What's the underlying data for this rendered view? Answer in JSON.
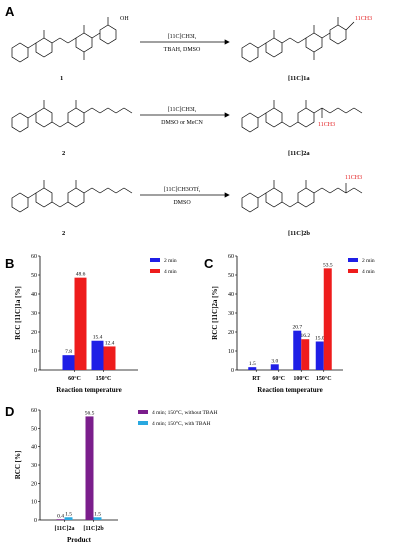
{
  "panels": {
    "a": "A",
    "b": "B",
    "c": "C",
    "d": "D"
  },
  "reactions": [
    {
      "reagent_line1": "[11C]CH3I,",
      "reagent_line2": "TBAH, DMSO",
      "reactant": "1",
      "product": "[11C]1a"
    },
    {
      "reagent_line1": "[11C]CH3I,",
      "reagent_line2": "DMSO or MeCN",
      "reactant": "2",
      "product": "[11C]2a"
    },
    {
      "reagent_line1": "[11C]CH3OTf,",
      "reagent_line2": "DMSO",
      "reactant": "2",
      "product": "[11C]2b"
    }
  ],
  "chem_labels": {
    "acid": "OH",
    "ester": "11CH3",
    "amine_me": "11CH3",
    "amide_me": "11CH3"
  },
  "colors": {
    "blue": "#1f1fe6",
    "red": "#ee1c1c",
    "purple": "#7b1e8c",
    "cyan": "#29a8e0"
  },
  "chart_data": [
    {
      "type": "bar",
      "panel": "B",
      "categories": [
        "60°C",
        "150°C"
      ],
      "series": [
        {
          "name": "2 min",
          "values": [
            7.8,
            15.4
          ]
        },
        {
          "name": "4 min",
          "values": [
            48.6,
            12.4
          ]
        }
      ],
      "value_labels": [
        [
          "7.8",
          "15.4"
        ],
        [
          "48.6",
          "12.4"
        ]
      ],
      "xlabel": "Reaction temperature",
      "ylabel": "RCC [11C]1a [%]",
      "ylim": [
        0,
        60
      ],
      "yticks": [
        "0",
        "10",
        "20",
        "30",
        "40",
        "50",
        "60"
      ],
      "legend": "top-right"
    },
    {
      "type": "bar",
      "panel": "C",
      "categories": [
        "RT",
        "60°C",
        "100°C",
        "150°C"
      ],
      "series": [
        {
          "name": "2 min",
          "values": [
            1.5,
            3.0,
            20.7,
            15.0
          ]
        },
        {
          "name": "4 min",
          "values": [
            0,
            0,
            16.2,
            53.5
          ]
        }
      ],
      "value_labels": [
        [
          "1.5",
          "3.0",
          "20.7",
          "15.0"
        ],
        [
          "",
          "",
          "16.2",
          "53.5"
        ]
      ],
      "xlabel": "Reaction temperature",
      "ylabel": "RCC [11C]2a [%]",
      "ylim": [
        0,
        60
      ],
      "yticks": [
        "0",
        "10",
        "20",
        "30",
        "40",
        "50",
        "60"
      ],
      "legend": "top-right"
    },
    {
      "type": "bar",
      "panel": "D",
      "categories": [
        "[11C]2a",
        "[11C]2b"
      ],
      "series": [
        {
          "name": "4 min; 150°C, without TBAH",
          "values": [
            0.4,
            56.5
          ]
        },
        {
          "name": "4 min; 150°C, with TBAH",
          "values": [
            1.5,
            1.5
          ]
        }
      ],
      "value_labels": [
        [
          "0.4",
          "56.5"
        ],
        [
          "1.5",
          "1.5"
        ]
      ],
      "xlabel": "Product",
      "ylabel": "RCC [%]",
      "ylim": [
        0,
        60
      ],
      "yticks": [
        "0",
        "10",
        "20",
        "30",
        "40",
        "50",
        "60"
      ],
      "legend": "top-right"
    }
  ]
}
